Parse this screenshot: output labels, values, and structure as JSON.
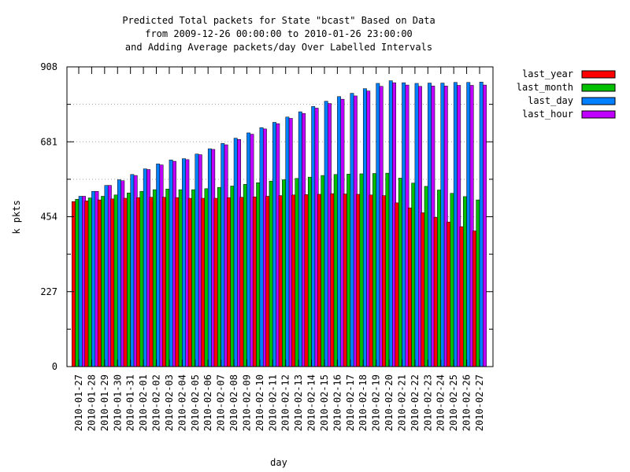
{
  "chart_data": {
    "type": "bar",
    "title": [
      "Predicted Total packets for State \"bcast\" Based on Data",
      "from 2009-12-26 00:00:00 to 2010-01-26 23:00:00",
      "and Adding Average packets/day Over Labelled Intervals"
    ],
    "xlabel": "day",
    "ylabel": "k pkts",
    "ylim": [
      0,
      908
    ],
    "yticks": [
      0,
      227,
      454,
      681,
      908
    ],
    "grid": true,
    "legend_position": "top-right-outside",
    "categories": [
      "2010-01-27",
      "2010-01-28",
      "2010-01-29",
      "2010-01-30",
      "2010-01-31",
      "2010-02-01",
      "2010-02-02",
      "2010-02-03",
      "2010-02-04",
      "2010-02-05",
      "2010-02-06",
      "2010-02-07",
      "2010-02-08",
      "2010-02-09",
      "2010-02-10",
      "2010-02-11",
      "2010-02-12",
      "2010-02-13",
      "2010-02-14",
      "2010-02-15",
      "2010-02-16",
      "2010-02-17",
      "2010-02-18",
      "2010-02-19",
      "2010-02-20",
      "2010-02-21",
      "2010-02-22",
      "2010-02-23",
      "2010-02-24",
      "2010-02-25",
      "2010-02-26",
      "2010-02-27"
    ],
    "series": [
      {
        "name": "last_year",
        "color": "#ff0000",
        "values": [
          500,
          502,
          505,
          508,
          510,
          512,
          513,
          513,
          512,
          510,
          510,
          510,
          512,
          513,
          514,
          516,
          518,
          520,
          521,
          522,
          524,
          523,
          522,
          520,
          518,
          496,
          481,
          466,
          452,
          438,
          424,
          411
        ]
      },
      {
        "name": "last_month",
        "color": "#00c000",
        "values": [
          507,
          511,
          516,
          520,
          526,
          531,
          536,
          538,
          536,
          536,
          539,
          543,
          547,
          552,
          557,
          562,
          566,
          570,
          574,
          579,
          582,
          583,
          584,
          585,
          586,
          571,
          556,
          546,
          535,
          525,
          515,
          505
        ]
      },
      {
        "name": "last_day",
        "color": "#0080ff",
        "values": [
          516,
          531,
          549,
          566,
          582,
          599,
          614,
          626,
          630,
          644,
          660,
          676,
          692,
          708,
          724,
          740,
          756,
          772,
          788,
          804,
          818,
          828,
          842,
          858,
          866,
          860,
          858,
          859,
          859,
          861,
          861,
          862
        ]
      },
      {
        "name": "last_hour",
        "color": "#c000ff",
        "values": [
          516,
          531,
          549,
          563,
          579,
          597,
          611,
          622,
          627,
          642,
          658,
          672,
          688,
          704,
          720,
          736,
          752,
          767,
          783,
          797,
          810,
          820,
          835,
          849,
          860,
          853,
          849,
          850,
          850,
          852,
          852,
          853
        ]
      }
    ]
  }
}
